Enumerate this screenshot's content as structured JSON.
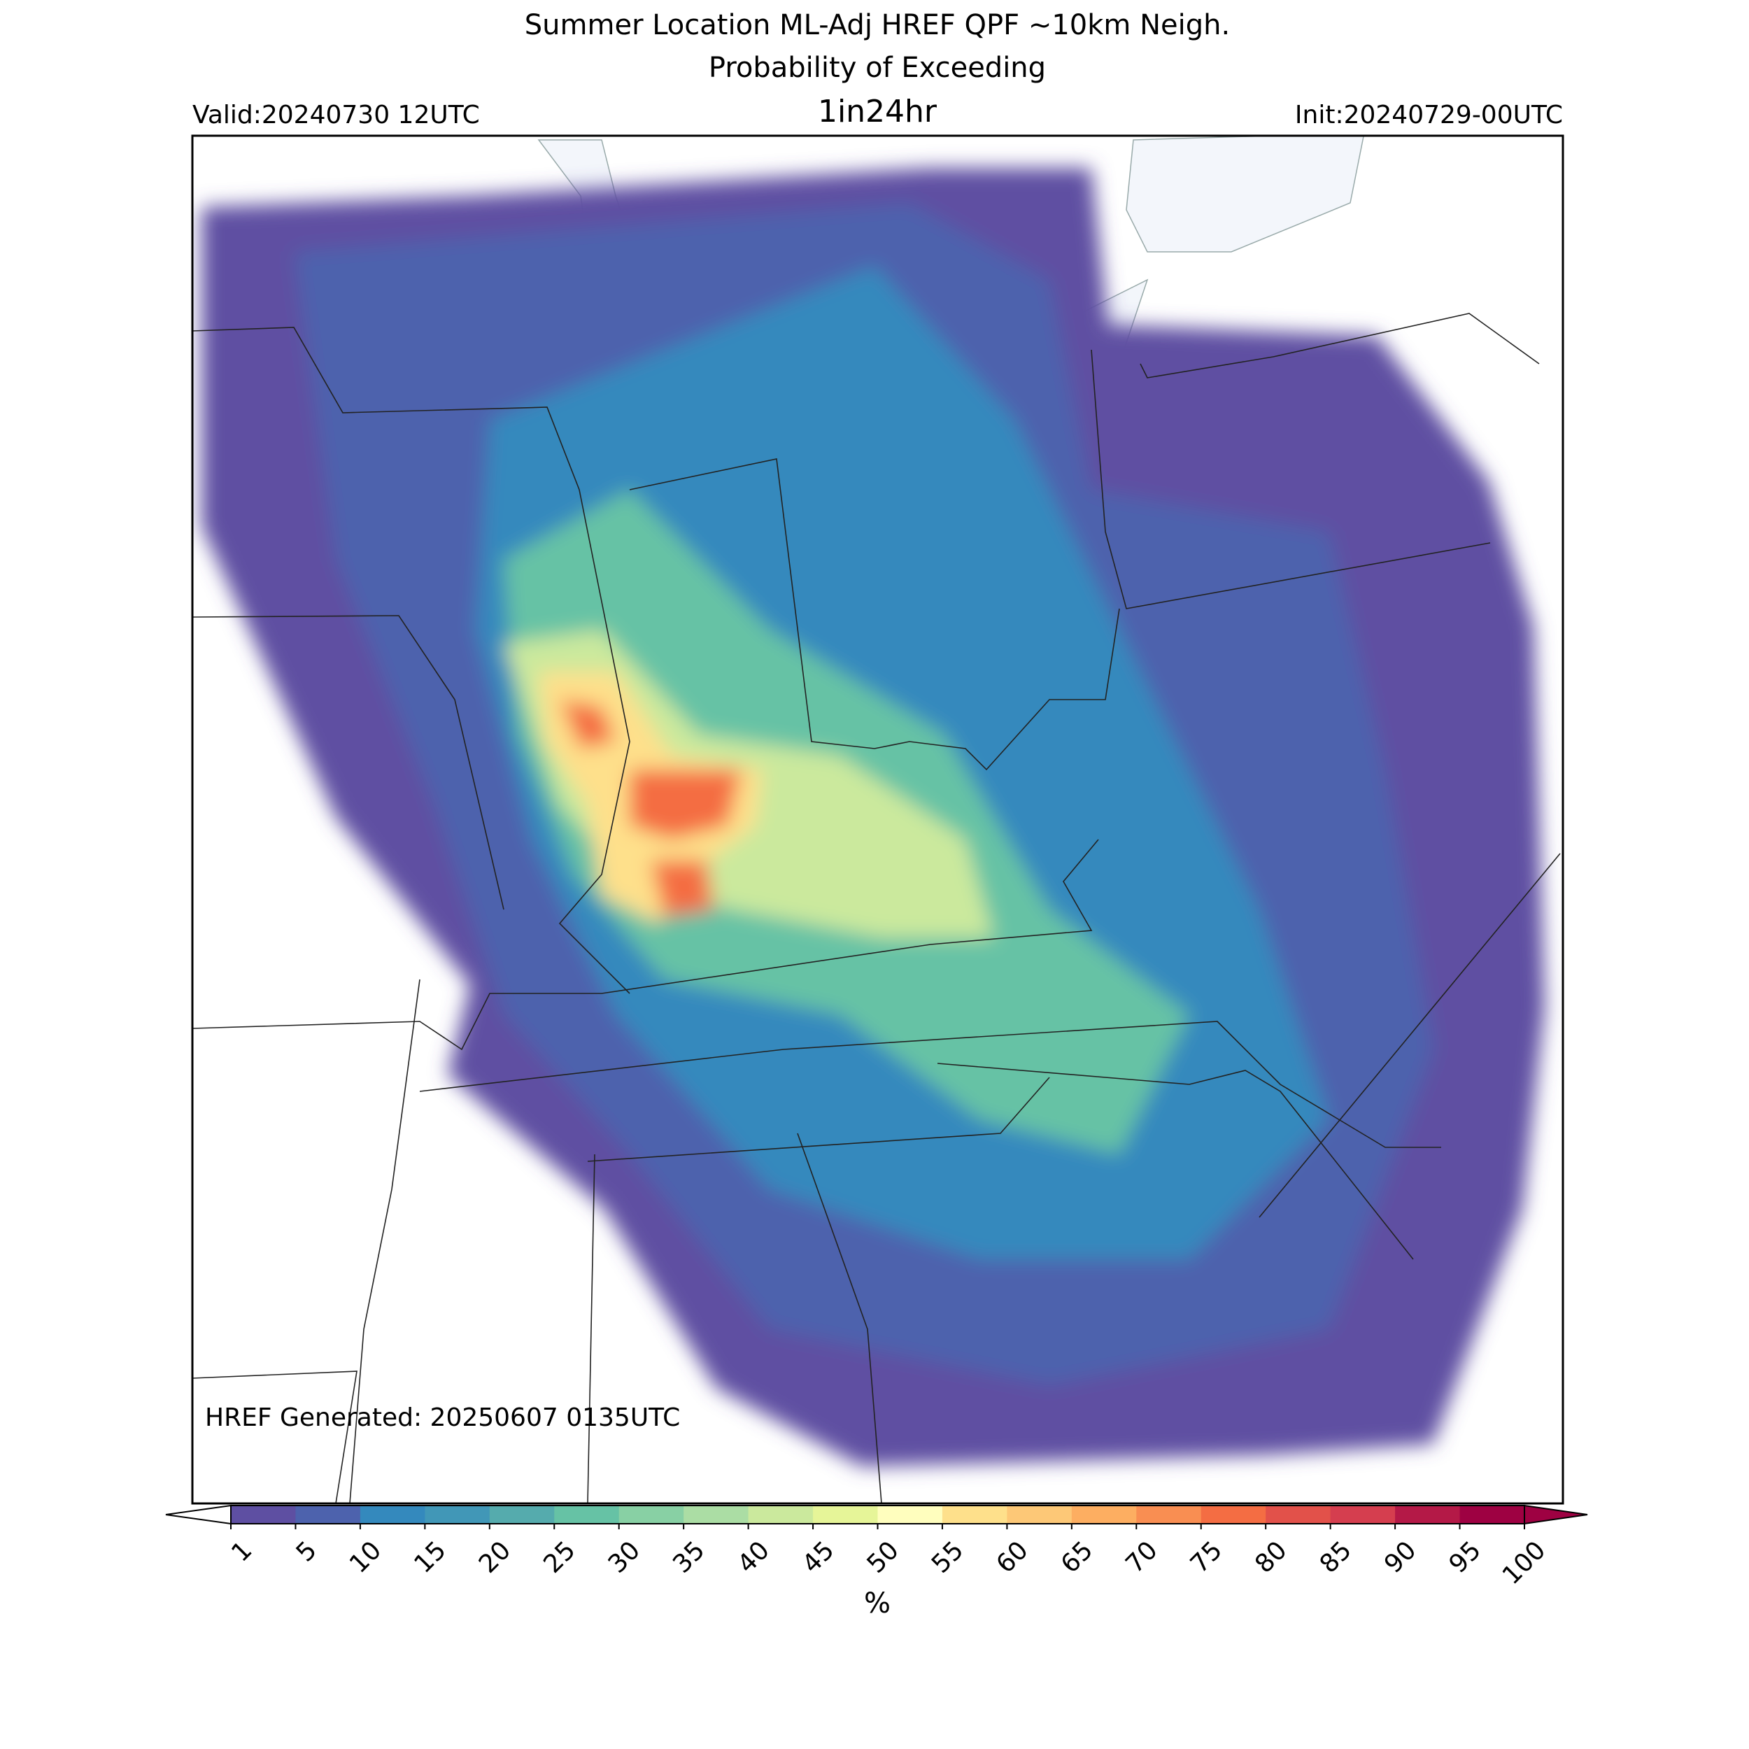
{
  "title": {
    "line1": "Summer Location ML-Adj HREF QPF ~10km Neigh.",
    "line2": "Probability of Exceeding",
    "threshold": "1in24hr"
  },
  "valid": "Valid:20240730 12UTC",
  "init": "Init:20240729-00UTC",
  "generated": "HREF Generated: 20250607 0135UTC",
  "colorbar": {
    "label": "%",
    "ticks": [
      1,
      5,
      10,
      15,
      20,
      25,
      30,
      35,
      40,
      45,
      50,
      55,
      60,
      65,
      70,
      75,
      80,
      85,
      90,
      95,
      100
    ],
    "colors": [
      "#5e4fa2",
      "#4d62ad",
      "#3489bd",
      "#4197b7",
      "#55abad",
      "#66c2a5",
      "#88d0a4",
      "#abdda4",
      "#cbe99d",
      "#e6f598",
      "#fffebe",
      "#fee08b",
      "#fdc877",
      "#fdae61",
      "#f98e52",
      "#f46d43",
      "#e2514a",
      "#d53e4f",
      "#b41947",
      "#9e0142"
    ],
    "under_color": "#ffffff",
    "over_color": "#9e0142"
  }
}
